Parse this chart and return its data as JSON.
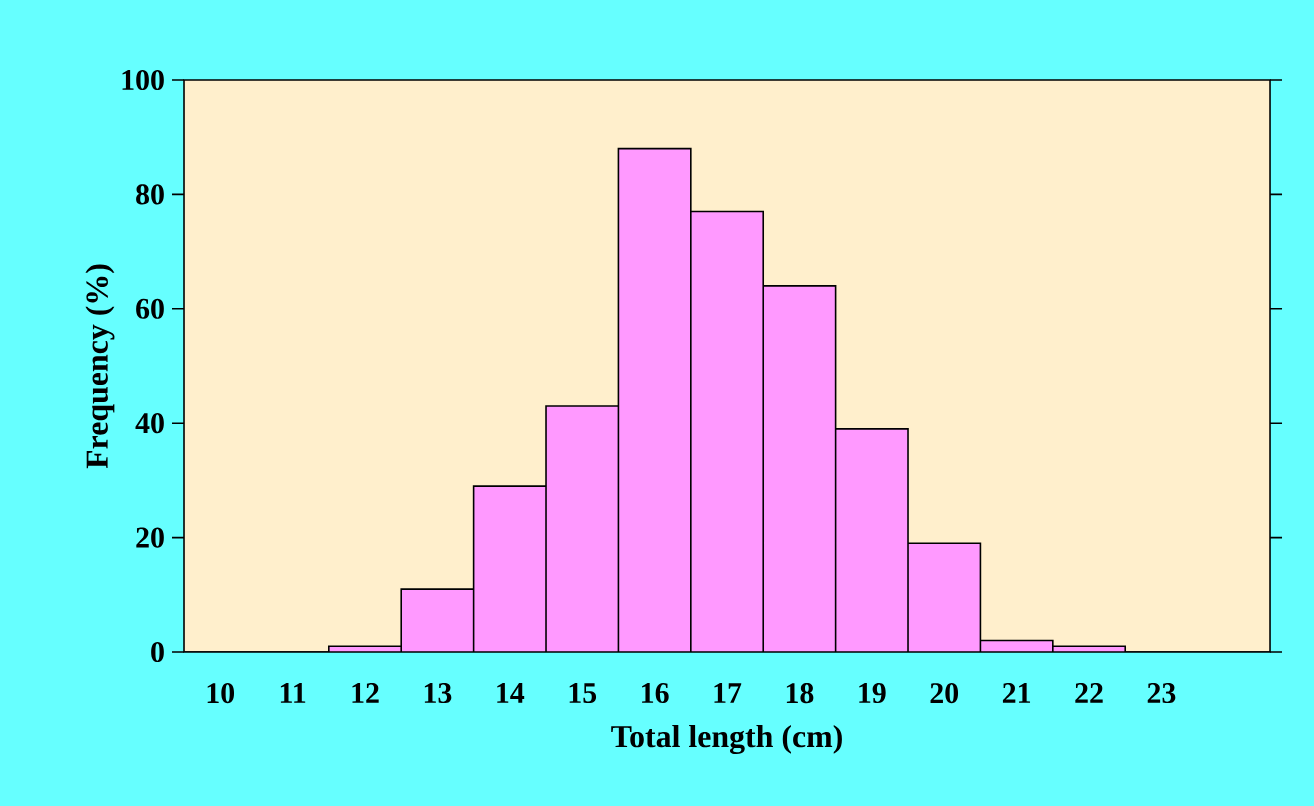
{
  "chart_data": {
    "type": "bar",
    "xlabel": "Total length (cm)",
    "ylabel": "Frequency (%)",
    "categories": [
      "10",
      "11",
      "12",
      "13",
      "14",
      "15",
      "16",
      "17",
      "18",
      "19",
      "20",
      "21",
      "22",
      "23",
      null
    ],
    "values": [
      0,
      0,
      1,
      11,
      29,
      43,
      88,
      77,
      64,
      39,
      19,
      2,
      1,
      0,
      0
    ],
    "color": "#ff99ff",
    "ylim": [
      0,
      100
    ],
    "yticks": [
      0,
      20,
      40,
      60,
      80,
      100
    ],
    "grid": false,
    "legend": false
  }
}
